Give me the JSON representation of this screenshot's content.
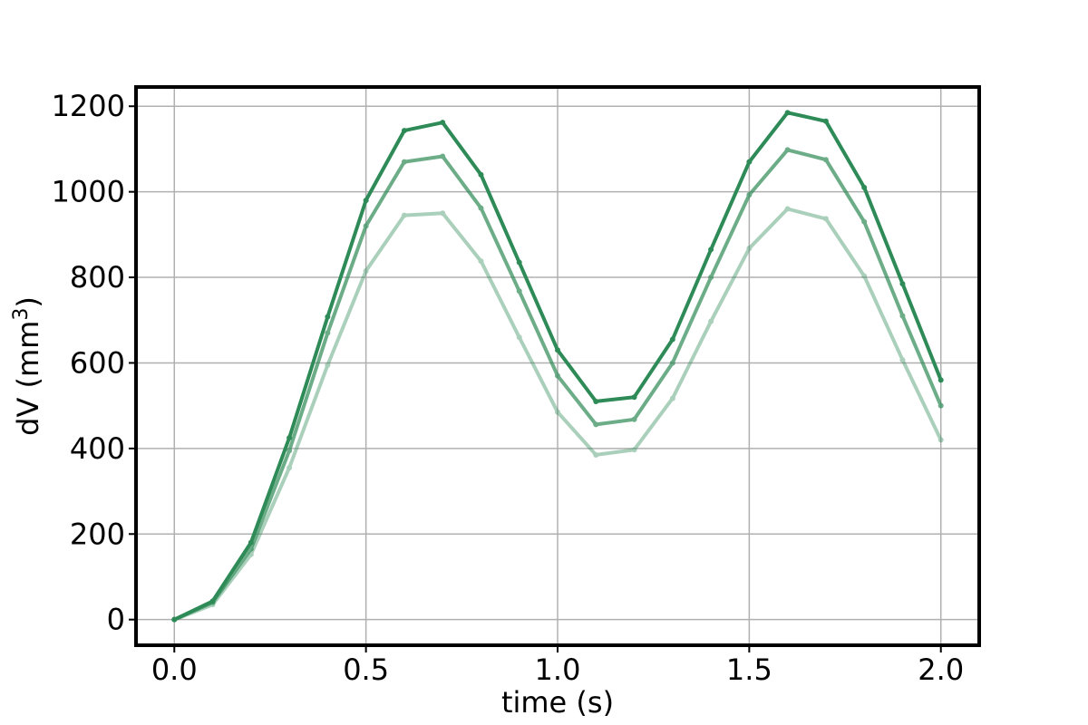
{
  "chart_data": {
    "type": "line",
    "title": "",
    "xlabel": "time (s)",
    "ylabel": {
      "base": "dV (mm",
      "superscript": "3",
      "end": ")"
    },
    "xlim": [
      -0.1,
      2.1
    ],
    "ylim": [
      -60,
      1245
    ],
    "xticks": [
      0.0,
      0.5,
      1.0,
      1.5,
      2.0
    ],
    "xtick_labels": [
      "0.0",
      "0.5",
      "1.0",
      "1.5",
      "2.0"
    ],
    "yticks": [
      0,
      200,
      400,
      600,
      800,
      1000,
      1200
    ],
    "ytick_labels": [
      "0",
      "200",
      "400",
      "600",
      "800",
      "1000",
      "1200"
    ],
    "grid": true,
    "x": [
      0.0,
      0.1,
      0.2,
      0.3,
      0.4,
      0.5,
      0.6,
      0.7,
      0.8,
      0.9,
      1.0,
      1.1,
      1.2,
      1.3,
      1.4,
      1.5,
      1.6,
      1.7,
      1.8,
      1.9,
      2.0
    ],
    "series": [
      {
        "color": "#2e8b57",
        "opacity": 1.0,
        "values": [
          0,
          43,
          180,
          425,
          708,
          980,
          1143,
          1162,
          1040,
          835,
          630,
          510,
          520,
          655,
          865,
          1070,
          1185,
          1165,
          1010,
          785,
          560
        ]
      },
      {
        "color": "#2e8b57",
        "opacity": 0.7,
        "values": [
          0,
          40,
          165,
          395,
          670,
          920,
          1070,
          1083,
          962,
          768,
          570,
          456,
          468,
          600,
          800,
          993,
          1098,
          1075,
          930,
          710,
          500
        ]
      },
      {
        "color": "#2e8b57",
        "opacity": 0.4,
        "values": [
          0,
          35,
          152,
          355,
          595,
          815,
          945,
          950,
          838,
          660,
          485,
          385,
          397,
          517,
          697,
          868,
          960,
          937,
          803,
          607,
          420
        ]
      }
    ]
  }
}
